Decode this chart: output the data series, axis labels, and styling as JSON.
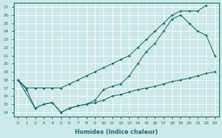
{
  "xlabel": "Humidex (Indice chaleur)",
  "ylabel": "",
  "bg_color": "#cce8e8",
  "grid_color": "#aad4d4",
  "line_color": "#1a6b6b",
  "xlim": [
    -0.5,
    23.5
  ],
  "ylim": [
    13.5,
    27.5
  ],
  "xticks": [
    0,
    1,
    2,
    3,
    4,
    5,
    6,
    7,
    8,
    9,
    10,
    11,
    12,
    13,
    14,
    15,
    16,
    17,
    18,
    19,
    20,
    21,
    22,
    23
  ],
  "yticks": [
    14,
    15,
    16,
    17,
    18,
    19,
    20,
    21,
    22,
    23,
    24,
    25,
    26,
    27
  ],
  "line1_x": [
    0,
    1,
    2,
    3,
    4,
    5,
    6,
    7,
    8,
    9,
    10,
    11,
    12,
    13,
    14,
    15,
    16,
    17,
    18,
    19,
    20,
    21,
    22
  ],
  "line1_y": [
    18.0,
    17.0,
    17.0,
    17.0,
    17.0,
    17.0,
    17.5,
    18.0,
    18.5,
    19.0,
    19.5,
    20.0,
    20.5,
    21.0,
    22.0,
    23.0,
    24.0,
    25.0,
    26.0,
    26.5,
    26.5,
    26.5,
    27.2
  ],
  "line2_x": [
    0,
    1,
    2,
    3,
    4,
    5,
    6,
    7,
    8,
    9,
    10,
    11,
    12,
    13,
    14,
    15,
    16,
    17,
    18,
    19,
    20,
    21,
    22,
    23
  ],
  "line2_y": [
    18.0,
    16.8,
    14.5,
    15.0,
    15.2,
    14.0,
    14.5,
    14.8,
    15.0,
    15.5,
    16.8,
    17.2,
    17.5,
    18.5,
    20.0,
    21.5,
    22.5,
    24.0,
    25.5,
    26.0,
    25.0,
    24.0,
    23.5,
    21.0
  ],
  "line3_x": [
    0,
    2,
    3,
    4,
    5,
    6,
    7,
    8,
    9,
    10,
    11,
    12,
    13,
    14,
    15,
    16,
    17,
    18,
    19,
    20,
    21,
    22,
    23
  ],
  "line3_y": [
    18.0,
    14.5,
    15.0,
    15.2,
    14.0,
    14.5,
    14.8,
    15.0,
    15.2,
    15.5,
    16.0,
    16.2,
    16.5,
    16.8,
    17.0,
    17.2,
    17.5,
    17.8,
    18.0,
    18.2,
    18.5,
    18.8,
    19.0
  ]
}
